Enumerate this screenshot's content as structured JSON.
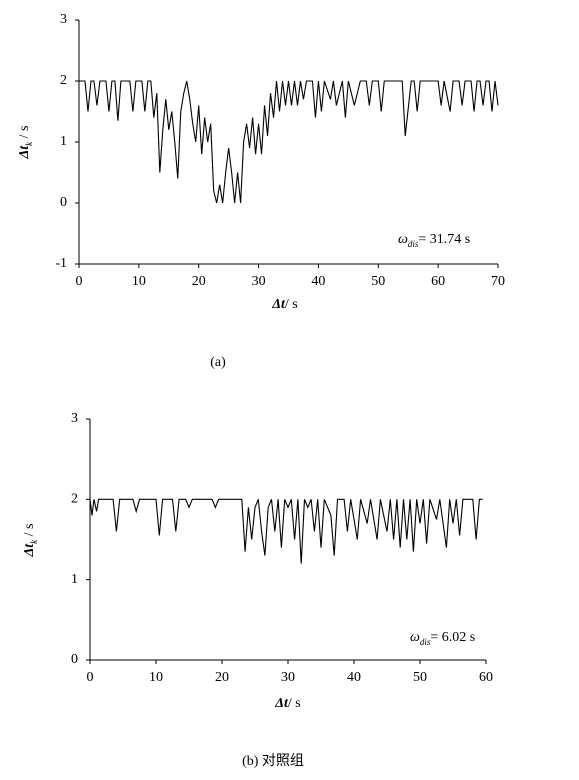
{
  "chart_data": [
    {
      "type": "line",
      "ylabel_parts": [
        "Δt",
        "k",
        " / s"
      ],
      "xlabel_parts": [
        "Δt",
        "/ s"
      ],
      "annotation_parts": [
        "ω",
        "dis",
        "= 31.74 s"
      ],
      "caption": "(a)",
      "x": [
        0,
        1,
        1.5,
        2,
        2.5,
        3,
        3.5,
        4,
        4.5,
        5,
        5.5,
        6,
        6.5,
        7,
        7.5,
        8.5,
        9,
        9.5,
        10.5,
        11,
        11.5,
        12,
        12.5,
        13,
        13.5,
        14,
        14.5,
        15,
        15.5,
        16,
        16.5,
        17,
        17.5,
        18,
        18.5,
        19,
        19.5,
        20,
        20.5,
        21,
        21.5,
        22,
        22.5,
        23,
        23.5,
        24,
        24.5,
        25,
        25.5,
        26,
        26.5,
        27,
        27.5,
        28,
        28.5,
        29,
        29.5,
        30,
        30.5,
        31,
        31.5,
        32,
        32.5,
        33,
        33.5,
        34,
        34.5,
        35,
        35.5,
        36,
        36.5,
        37,
        37.5,
        38,
        39,
        39.5,
        40,
        40.5,
        41,
        42,
        42.5,
        43,
        44,
        44.5,
        45,
        46,
        47,
        48,
        48.5,
        49,
        50,
        50.5,
        51,
        54,
        54.5,
        55.5,
        56,
        56.5,
        57,
        60,
        60.5,
        61,
        62,
        62.5,
        63.5,
        64,
        64.5,
        65.5,
        66,
        66.5,
        67,
        67.5,
        68,
        68.5,
        69,
        69.5,
        70
      ],
      "values": [
        2,
        2,
        1.5,
        2,
        2,
        1.6,
        2,
        2,
        2,
        1.5,
        2,
        2,
        1.35,
        2,
        2,
        2,
        1.5,
        2,
        2,
        1.5,
        2,
        2,
        1.4,
        1.8,
        0.5,
        1.2,
        1.7,
        1.2,
        1.5,
        1.0,
        0.4,
        1.5,
        1.8,
        2,
        1.7,
        1.3,
        1.0,
        1.6,
        0.8,
        1.4,
        1.0,
        1.3,
        0.2,
        0,
        0.3,
        0,
        0.5,
        0.9,
        0.5,
        0,
        0.5,
        0,
        1.0,
        1.3,
        0.9,
        1.4,
        0.8,
        1.3,
        0.8,
        1.6,
        1.1,
        1.8,
        1.4,
        2,
        1.5,
        2,
        1.6,
        2,
        1.6,
        2,
        1.6,
        2,
        1.7,
        2,
        2,
        1.4,
        2,
        1.5,
        2,
        1.7,
        2,
        1.6,
        2,
        1.4,
        2,
        1.6,
        2,
        2,
        1.6,
        2,
        2,
        1.5,
        2,
        2,
        1.1,
        2,
        2,
        1.5,
        2,
        2,
        1.6,
        2,
        1.5,
        2,
        2,
        1.6,
        2,
        2,
        1.5,
        2,
        2,
        1.6,
        2,
        2,
        1.5,
        2,
        1.6
      ],
      "color": "#000000",
      "xlim": [
        0,
        70
      ],
      "xticks": [
        0,
        10,
        20,
        30,
        40,
        50,
        60,
        70
      ],
      "ylim": [
        -1,
        3
      ],
      "yticks": [
        -1,
        0,
        1,
        2,
        3
      ]
    },
    {
      "type": "line",
      "ylabel_parts": [
        "Δt",
        "k",
        " / s"
      ],
      "xlabel_parts": [
        "Δt",
        "/ s"
      ],
      "annotation_parts": [
        "ω",
        "dis",
        "= 6.02 s"
      ],
      "caption": "(b)   对照组",
      "x": [
        0,
        0.3,
        0.6,
        1,
        1.3,
        3.5,
        4,
        4.5,
        6.5,
        7,
        7.5,
        10,
        10.5,
        11,
        12.5,
        13,
        13.5,
        14.5,
        15,
        15.5,
        18.5,
        19,
        19.5,
        23,
        23.5,
        24,
        24.5,
        25,
        25.5,
        26,
        26.5,
        27,
        27.5,
        28,
        28.5,
        29,
        29.5,
        30,
        30.5,
        31,
        31.5,
        32,
        32.5,
        33,
        33.5,
        34,
        34.5,
        35,
        35.5,
        36.5,
        37,
        37.5,
        38.5,
        39,
        39.5,
        40.5,
        41,
        42,
        42.5,
        43.5,
        44,
        45,
        45.5,
        46,
        46.5,
        47,
        47.5,
        48,
        48.5,
        49,
        49.5,
        50,
        50.5,
        51,
        51.5,
        52.5,
        53,
        54,
        54.5,
        55,
        55.5,
        56,
        56.5,
        58,
        58.5,
        59,
        59.5
      ],
      "values": [
        2,
        1.8,
        2,
        1.85,
        2,
        2,
        1.6,
        2,
        2,
        1.85,
        2,
        2,
        1.55,
        2,
        2,
        1.6,
        2,
        2,
        1.9,
        2,
        2,
        1.9,
        2,
        2,
        1.35,
        1.9,
        1.5,
        1.9,
        2,
        1.6,
        1.3,
        1.9,
        2,
        1.6,
        2,
        1.4,
        2,
        1.9,
        2,
        1.5,
        2,
        1.2,
        2,
        1.9,
        2,
        1.6,
        2,
        1.4,
        2,
        1.8,
        1.3,
        2,
        2,
        1.6,
        2,
        1.5,
        2,
        1.7,
        2,
        1.5,
        2,
        1.6,
        2,
        1.5,
        2,
        1.4,
        2,
        1.5,
        2,
        1.35,
        2,
        1.7,
        2,
        1.45,
        2,
        1.75,
        2,
        1.4,
        2,
        1.7,
        2,
        1.55,
        2,
        2,
        1.5,
        2,
        2
      ],
      "color": "#000000",
      "xlim": [
        0,
        60
      ],
      "xticks": [
        0,
        10,
        20,
        30,
        40,
        50,
        60
      ],
      "ylim": [
        0,
        3
      ],
      "yticks": [
        0,
        1,
        2,
        3
      ]
    }
  ]
}
